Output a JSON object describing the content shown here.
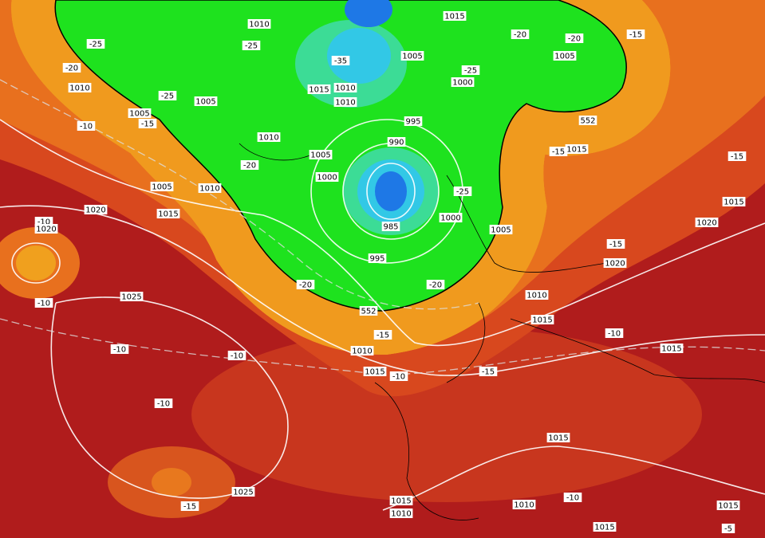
{
  "map": {
    "labels": [
      "1015",
      "1010",
      "-25",
      "-25",
      "1005",
      "-20",
      "1010",
      "-25",
      "1015",
      "1010",
      "1010",
      "1005",
      "1005",
      "-15",
      "-10",
      "995",
      "1000",
      "-25",
      "1010",
      "990",
      "1005",
      "-20",
      "1000",
      "1005",
      "1010",
      "1020",
      "1015",
      "-25",
      "1000",
      "985",
      "1005",
      "-10",
      "1020",
      "995",
      "-20",
      "-20",
      "-10",
      "1025",
      "552",
      "1010",
      "1015",
      "-15",
      "1010",
      "-10",
      "-10",
      "1015",
      "-10",
      "-15",
      "-10",
      "1015",
      "1025",
      "-15",
      "1015",
      "1010",
      "1010",
      "-10",
      "1015",
      "1015",
      "-5",
      "1015",
      "-15",
      "1015",
      "-15",
      "1020",
      "-15",
      "1020",
      "-10",
      "1015",
      "1005",
      "-20",
      "-15",
      "-20",
      "552",
      "-35"
    ]
  }
}
